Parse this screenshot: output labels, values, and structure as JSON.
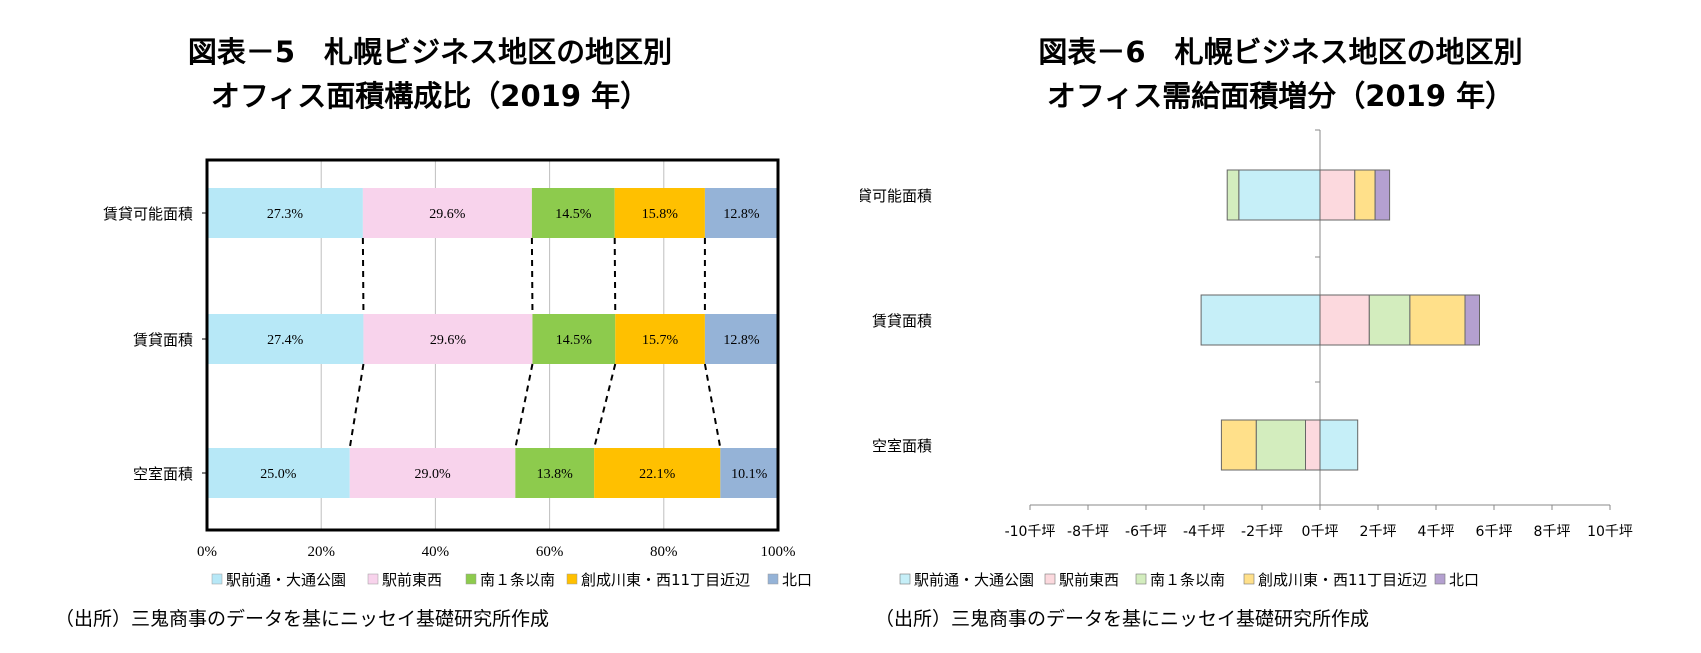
{
  "chart_data": [
    {
      "type": "bar",
      "stacked": "percent",
      "orientation": "horizontal",
      "title": "図表－5　札幌ビジネス地区の地区別",
      "subtitle": "オフィス面積構成比（2019 年）",
      "categories": [
        "賃貸可能面積",
        "賃貸面積",
        "空室面積"
      ],
      "series": [
        {
          "name": "駅前通・大通公園",
          "values": [
            27.3,
            27.4,
            25.0
          ],
          "color": "#B7E8F7"
        },
        {
          "name": "駅前東西",
          "values": [
            29.6,
            29.6,
            29.0
          ],
          "color": "#F8D3EC"
        },
        {
          "name": "南１条以南",
          "values": [
            14.5,
            14.5,
            13.8
          ],
          "color": "#8DCB4D"
        },
        {
          "name": "創成川東・西11丁目近辺",
          "values": [
            15.8,
            15.7,
            22.1
          ],
          "color": "#FFC000"
        },
        {
          "name": "北口",
          "values": [
            12.8,
            12.8,
            10.1
          ],
          "color": "#95B3D7"
        }
      ],
      "data_labels": [
        [
          "27.3%",
          "29.6%",
          "14.5%",
          "15.8%",
          "12.8%"
        ],
        [
          "27.4%",
          "29.6%",
          "14.5%",
          "15.7%",
          "12.8%"
        ],
        [
          "25.0%",
          "29.0%",
          "13.8%",
          "22.1%",
          "10.1%"
        ]
      ],
      "xlim": [
        0,
        100
      ],
      "x_ticks": [
        "0%",
        "20%",
        "40%",
        "60%",
        "80%",
        "100%"
      ],
      "grid": true,
      "legend": "bottom",
      "source": "（出所）三鬼商事のデータを基にニッセイ基礎研究所作成"
    },
    {
      "type": "bar",
      "stacked": "diverging",
      "orientation": "horizontal",
      "unit": "千坪",
      "title": "図表－6　札幌ビジネス地区の地区別",
      "subtitle": "オフィス需給面積増分（2019 年）",
      "categories": [
        "賃貸可能面積",
        "賃貸面積",
        "空室面積"
      ],
      "series": [
        {
          "name": "駅前通・大通公園",
          "values": [
            -2.8,
            -4.1,
            1.3
          ],
          "color": "#C6EFF8"
        },
        {
          "name": "駅前東西",
          "values": [
            1.2,
            1.7,
            -0.5
          ],
          "color": "#FCD9DE"
        },
        {
          "name": "南１条以南",
          "values": [
            -0.4,
            1.4,
            -1.7
          ],
          "color": "#D3EDBE"
        },
        {
          "name": "創成川東・西11丁目近辺",
          "values": [
            0.7,
            1.9,
            -1.2
          ],
          "color": "#FFE08A"
        },
        {
          "name": "北口",
          "values": [
            0.5,
            0.5,
            0.0
          ],
          "color": "#B4A0D0"
        }
      ],
      "xlim": [
        -10,
        10
      ],
      "x_ticks": [
        "-10千坪",
        "-8千坪",
        "-6千坪",
        "-4千坪",
        "-2千坪",
        "0千坪",
        "2千坪",
        "4千坪",
        "6千坪",
        "8千坪",
        "10千坪"
      ],
      "grid": false,
      "legend": "bottom",
      "source": "（出所）三鬼商事のデータを基にニッセイ基礎研究所作成"
    }
  ]
}
